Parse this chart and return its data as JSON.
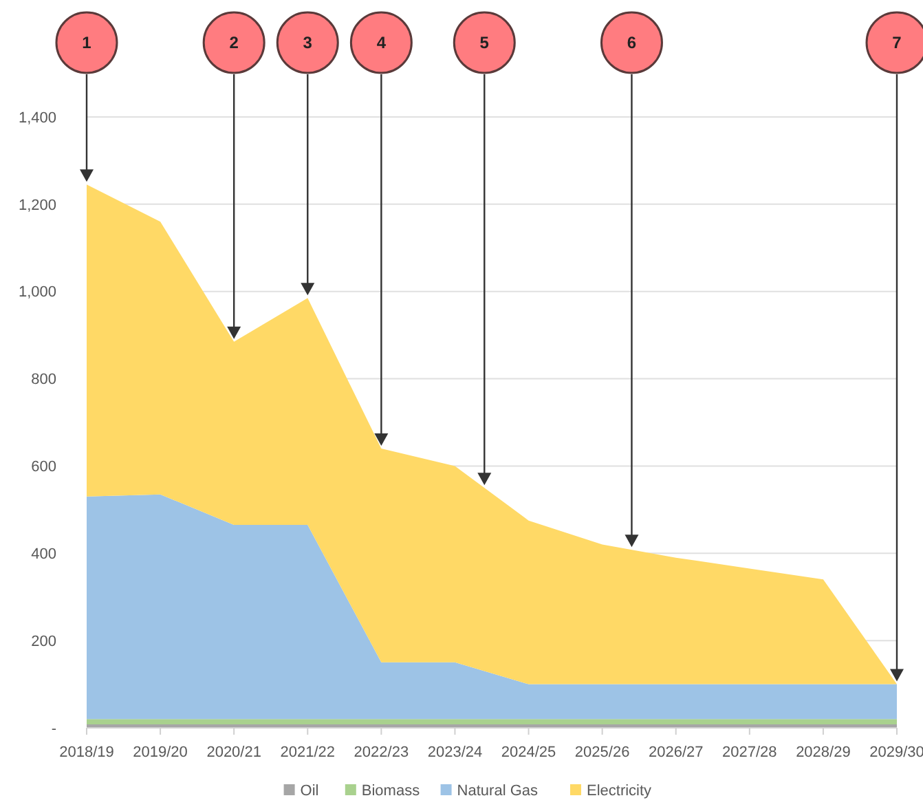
{
  "chart_data": {
    "type": "area",
    "stacked": true,
    "categories": [
      "2018/19",
      "2019/20",
      "2020/21",
      "2021/22",
      "2022/23",
      "2023/24",
      "2024/25",
      "2025/26",
      "2026/27",
      "2027/28",
      "2028/29",
      "2029/30"
    ],
    "series": [
      {
        "name": "Oil",
        "color": "#a6a6a6",
        "values": [
          8,
          8,
          8,
          8,
          8,
          8,
          8,
          8,
          8,
          8,
          8,
          8
        ]
      },
      {
        "name": "Biomass",
        "color": "#a9d18e",
        "values": [
          12,
          12,
          12,
          12,
          12,
          12,
          12,
          12,
          12,
          12,
          12,
          12
        ]
      },
      {
        "name": "Natural Gas",
        "color": "#9dc3e6",
        "values": [
          510,
          515,
          445,
          445,
          130,
          130,
          80,
          80,
          80,
          80,
          80,
          80
        ]
      },
      {
        "name": "Electricity",
        "color": "#ffd966",
        "values": [
          715,
          625,
          420,
          520,
          490,
          450,
          375,
          320,
          290,
          265,
          240,
          0
        ]
      }
    ],
    "ylim": [
      0,
      1400
    ],
    "yticks": [
      {
        "value": 0,
        "label": "-"
      },
      200,
      400,
      600,
      800,
      {
        "value": 1000,
        "label": "1,000"
      },
      {
        "value": 1200,
        "label": "1,200"
      },
      {
        "value": 1400,
        "label": "1,400"
      }
    ],
    "grid": "y",
    "legend": "bottom",
    "annotations": [
      "1",
      "2",
      "3",
      "4",
      "5",
      "6",
      "7"
    ]
  }
}
